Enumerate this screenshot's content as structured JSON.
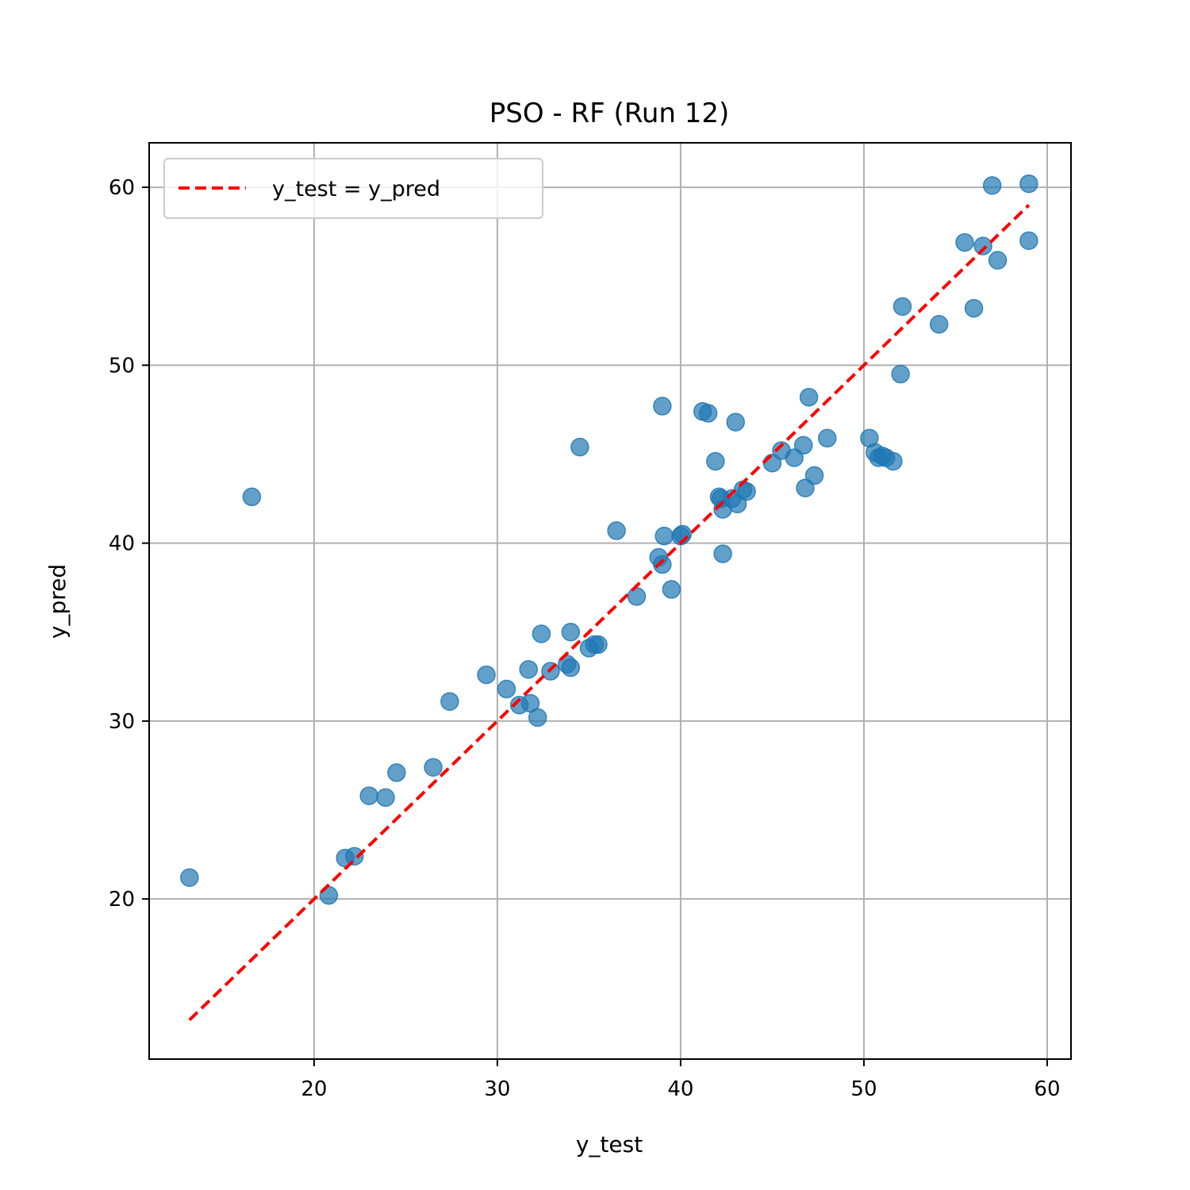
{
  "chart_data": {
    "type": "scatter",
    "title": "PSO - RF (Run 12)",
    "xlabel": "y_test",
    "ylabel": "y_pred",
    "xlim": [
      11,
      61.3
    ],
    "ylim": [
      11,
      62.5
    ],
    "xticks": [
      20,
      30,
      40,
      50,
      60
    ],
    "yticks": [
      20,
      30,
      40,
      50,
      60
    ],
    "grid": true,
    "legend_position": "upper-left",
    "point_color": "#1f77b4",
    "line_color": "#ff0000",
    "series": [
      {
        "type": "scatter",
        "points": [
          [
            13.2,
            21.2
          ],
          [
            16.6,
            42.6
          ],
          [
            20.8,
            20.2
          ],
          [
            21.7,
            22.3
          ],
          [
            22.2,
            22.4
          ],
          [
            23.0,
            25.8
          ],
          [
            23.9,
            25.7
          ],
          [
            24.5,
            27.1
          ],
          [
            26.5,
            27.4
          ],
          [
            27.4,
            31.1
          ],
          [
            29.4,
            32.6
          ],
          [
            30.5,
            31.8
          ],
          [
            31.2,
            30.9
          ],
          [
            31.8,
            31.0
          ],
          [
            31.7,
            32.9
          ],
          [
            32.2,
            30.2
          ],
          [
            32.4,
            34.9
          ],
          [
            32.9,
            32.8
          ],
          [
            33.8,
            33.2
          ],
          [
            34.0,
            33.0
          ],
          [
            34.0,
            35.0
          ],
          [
            34.5,
            45.4
          ],
          [
            35.0,
            34.1
          ],
          [
            35.3,
            34.3
          ],
          [
            35.5,
            34.3
          ],
          [
            36.5,
            40.7
          ],
          [
            37.6,
            37.0
          ],
          [
            38.8,
            39.2
          ],
          [
            39.0,
            38.8
          ],
          [
            39.1,
            40.4
          ],
          [
            39.0,
            47.7
          ],
          [
            39.5,
            37.4
          ],
          [
            40.0,
            40.4
          ],
          [
            40.1,
            40.5
          ],
          [
            41.2,
            47.4
          ],
          [
            41.5,
            47.3
          ],
          [
            41.9,
            44.6
          ],
          [
            42.1,
            42.6
          ],
          [
            42.2,
            42.5
          ],
          [
            42.3,
            41.9
          ],
          [
            42.3,
            39.4
          ],
          [
            42.8,
            42.5
          ],
          [
            43.0,
            46.8
          ],
          [
            43.1,
            42.2
          ],
          [
            43.4,
            43.0
          ],
          [
            43.6,
            42.9
          ],
          [
            45.0,
            44.5
          ],
          [
            45.5,
            45.2
          ],
          [
            46.2,
            44.8
          ],
          [
            46.7,
            45.5
          ],
          [
            46.8,
            43.1
          ],
          [
            47.0,
            48.2
          ],
          [
            47.3,
            43.8
          ],
          [
            48.0,
            45.9
          ],
          [
            50.3,
            45.9
          ],
          [
            50.6,
            45.1
          ],
          [
            50.8,
            44.8
          ],
          [
            51.0,
            44.9
          ],
          [
            51.2,
            44.8
          ],
          [
            51.6,
            44.6
          ],
          [
            52.0,
            49.5
          ],
          [
            52.1,
            53.3
          ],
          [
            54.1,
            52.3
          ],
          [
            55.5,
            56.9
          ],
          [
            56.0,
            53.2
          ],
          [
            56.5,
            56.7
          ],
          [
            57.0,
            60.1
          ],
          [
            57.3,
            55.9
          ],
          [
            59.0,
            60.2
          ],
          [
            59.0,
            57.0
          ]
        ]
      },
      {
        "type": "line",
        "name": "y_test = y_pred",
        "style": "dashed",
        "x": [
          13.2,
          59.0
        ],
        "y": [
          13.2,
          59.0
        ]
      }
    ]
  }
}
